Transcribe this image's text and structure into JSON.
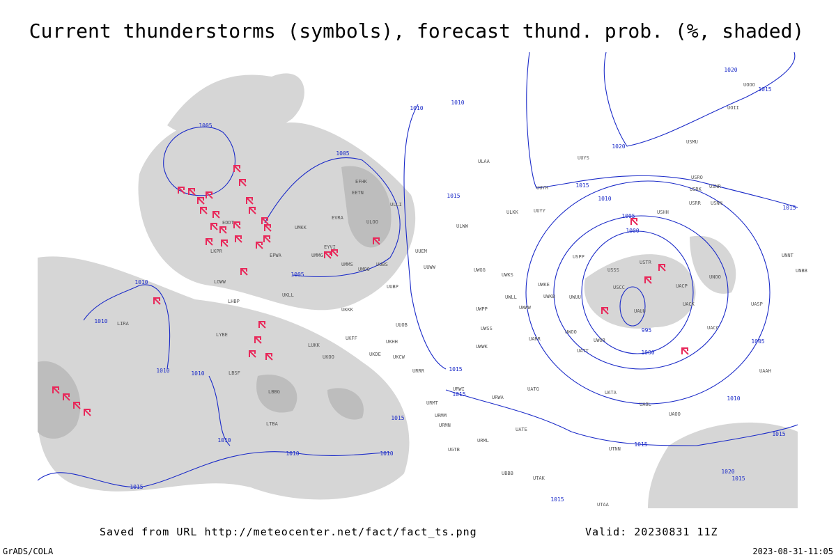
{
  "title": "Current thunderstorms (symbols), forecast thund. prob. (%, shaded)",
  "footer": {
    "source": "Saved from URL http://meteocenter.net/fact/fact_ts.png",
    "valid": "Valid: 20230831 11Z",
    "software": "GrADS/COLA",
    "timestamp": "2023-08-31-11:05"
  },
  "isobar_labels": [
    1005,
    1005,
    1005,
    1010,
    1010,
    1015,
    1015,
    1015,
    1015,
    1020,
    1020,
    1010,
    1005,
    1000,
    995,
    1000,
    1005,
    1010,
    1015,
    1015,
    1015,
    1015,
    1010,
    1010,
    1010,
    1010,
    1010,
    1010,
    1010,
    1015,
    1015,
    1015,
    1015,
    1020
  ],
  "stations": [
    "ULAA",
    "ULKK",
    "UUYY",
    "ULWW",
    "UUEM",
    "UUWW",
    "UWGG",
    "UWKS",
    "UWKE",
    "UWKB",
    "UWUU",
    "UWPP",
    "UWLL",
    "UWWW",
    "USSS",
    "USCC",
    "USTR",
    "UAUU",
    "USPP",
    "USHH",
    "USRR",
    "USRK",
    "USNN",
    "USRO",
    "USNR",
    "UUYS",
    "USMU",
    "UOOO",
    "UOII",
    "UUYH",
    "UNNT",
    "UNBB",
    "UNOO",
    "UACP",
    "UACK",
    "UASP",
    "UACC",
    "UAAH",
    "UATA",
    "UAOL",
    "UAOO",
    "UATG",
    "UATE",
    "URWA",
    "URWI",
    "URMT",
    "URMM",
    "URMN",
    "URML",
    "UGTB",
    "UBBB",
    "UTAK",
    "UTNN",
    "UTAA",
    "UWOO",
    "UWOR",
    "UATT",
    "UARR",
    "UWSS",
    "UWWK",
    "URRR",
    "UKCW",
    "UKOO",
    "UKKK",
    "UKLL",
    "UMMS",
    "UMMG",
    "UMOO",
    "UUOB",
    "UUBP",
    "UUBS",
    "ULOO",
    "EVRA",
    "EFHK",
    "EETN",
    "ULLI",
    "EYVI",
    "UMKK",
    "EPWA",
    "EDDT",
    "LKPR",
    "LOWW",
    "LHBP",
    "LIRA",
    "LYBE",
    "LBSF",
    "LBBG",
    "LTBA",
    "LUKK",
    "UKFF",
    "UKDE",
    "UKHH"
  ]
}
